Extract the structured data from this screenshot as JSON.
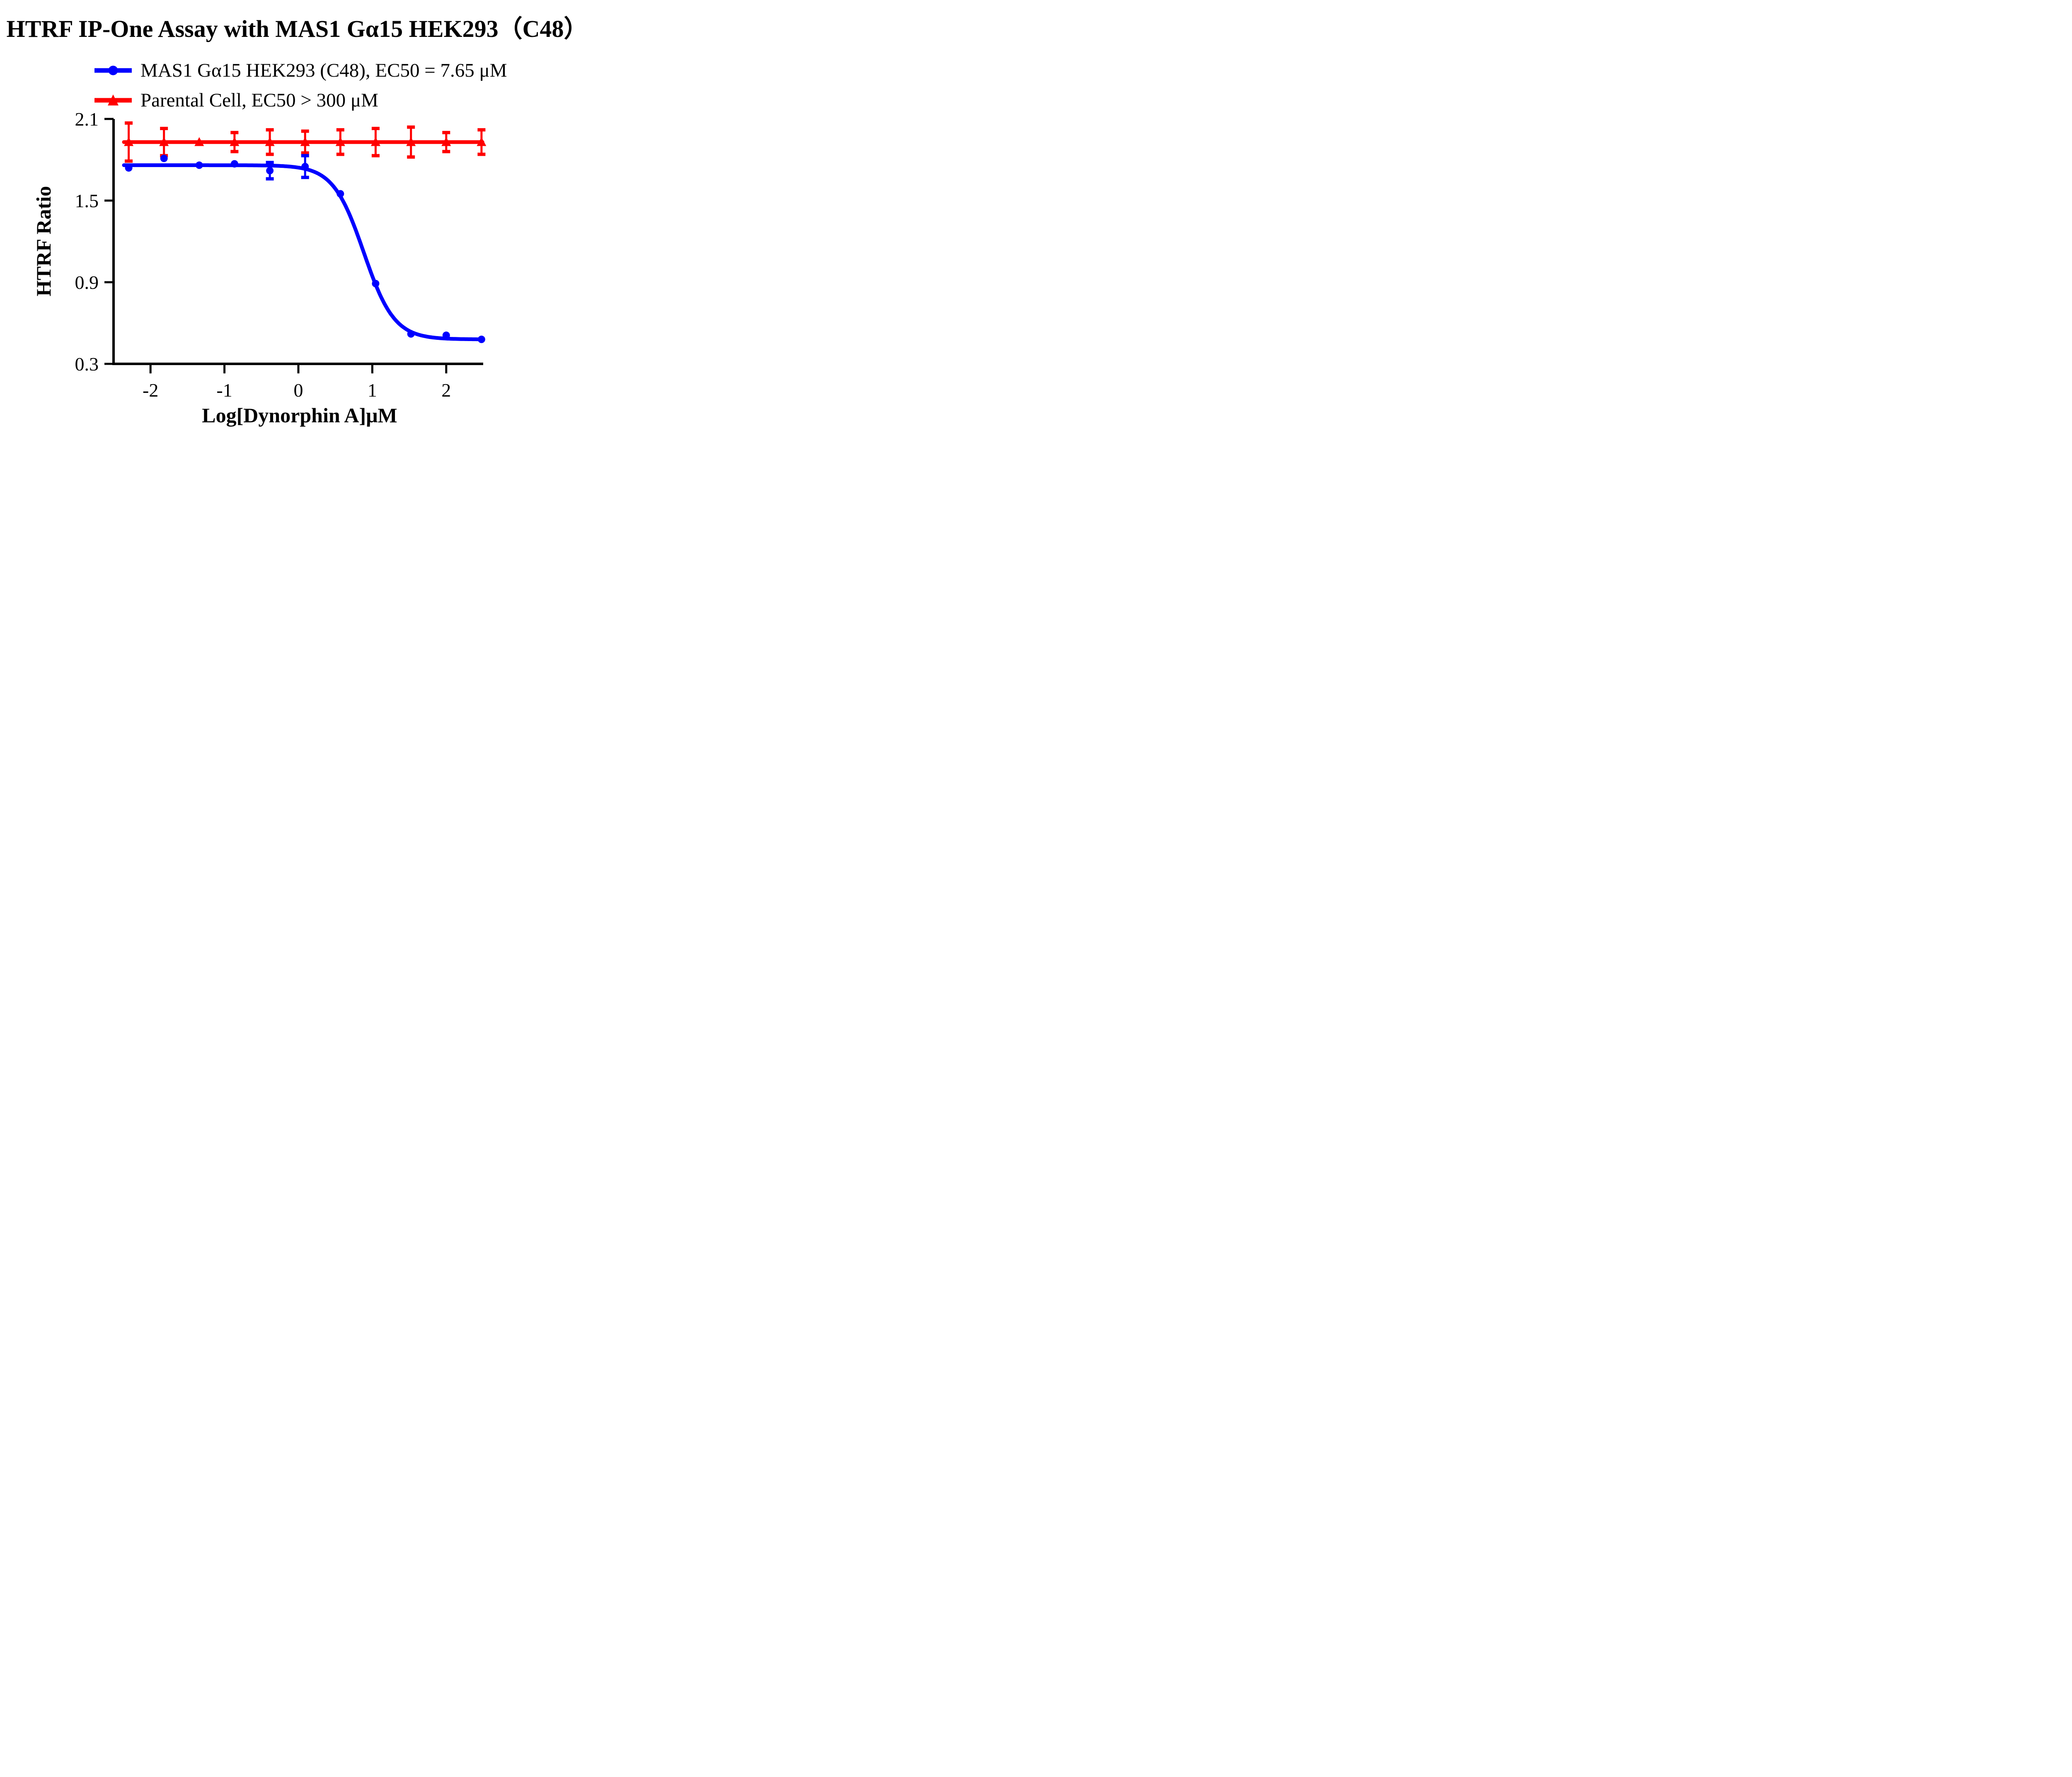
{
  "title": "HTRF IP-One Assay with MAS1 Gα15 HEK293（C48）",
  "colors": {
    "series_blue": "#0000FF",
    "series_red": "#FF0000",
    "axis": "#000000",
    "background": "#FFFFFF"
  },
  "legend": [
    {
      "label": "MAS1 Gα15 HEK293 (C48), EC50 = 7.65 μM",
      "marker": "circle",
      "color": "#0000FF"
    },
    {
      "label": "Parental Cell, EC50 > 300 μM",
      "marker": "triangle",
      "color": "#FF0000"
    }
  ],
  "chart_data": {
    "type": "scatter",
    "title": "HTRF IP-One Assay with MAS1 Gα15 HEK293（C48）",
    "xlabel": "Log[Dynorphin A]μM",
    "ylabel": "HTRF Ratio",
    "xlim": [
      -2.5,
      2.5
    ],
    "ylim": [
      0.3,
      2.1
    ],
    "x_ticks": [
      -2,
      -1,
      0,
      1,
      2
    ],
    "x_tick_labels": [
      "-2",
      "-1",
      "0",
      "1",
      "2"
    ],
    "y_ticks": [
      2.1,
      1.5,
      0.9,
      0.3
    ],
    "y_tick_labels": [
      "2.1",
      "1.5",
      "0.9",
      "0.3"
    ],
    "grid": false,
    "legend_position": "top-left, above plot",
    "series": [
      {
        "name": "MAS1 Gα15 HEK293 (C48)",
        "ec50_label": "EC50 = 7.65 μM",
        "marker": "circle",
        "color": "#0000FF",
        "x": [
          -2.295,
          -1.818,
          -1.341,
          -0.864,
          -0.386,
          0.091,
          0.568,
          1.045,
          1.523,
          2.0,
          2.477
        ],
        "y": [
          1.74,
          1.81,
          1.76,
          1.77,
          1.72,
          1.75,
          1.55,
          0.89,
          0.52,
          0.51,
          0.48
        ],
        "yerr": [
          0,
          0,
          0,
          0,
          0.06,
          0.08,
          0,
          0,
          0,
          0,
          0
        ],
        "fit": {
          "type": "4PL",
          "top": 1.76,
          "bottom": 0.48,
          "logEC50": 0.884,
          "hill": 2.1,
          "range": [
            -2.36,
            2.49
          ]
        }
      },
      {
        "name": "Parental Cell",
        "ec50_label": "EC50 > 300 μM",
        "marker": "triangle",
        "color": "#FF0000",
        "x": [
          -2.295,
          -1.818,
          -1.341,
          -0.864,
          -0.386,
          0.091,
          0.568,
          1.045,
          1.523,
          2.0,
          2.477
        ],
        "y": [
          1.93,
          1.93,
          1.93,
          1.93,
          1.93,
          1.93,
          1.93,
          1.93,
          1.93,
          1.93,
          1.93
        ],
        "yerr": [
          0.14,
          0.1,
          0.02,
          0.07,
          0.09,
          0.08,
          0.09,
          0.1,
          0.11,
          0.07,
          0.09
        ],
        "fit": {
          "type": "flat",
          "value": 1.93,
          "range": [
            -2.36,
            2.49
          ]
        }
      }
    ]
  }
}
